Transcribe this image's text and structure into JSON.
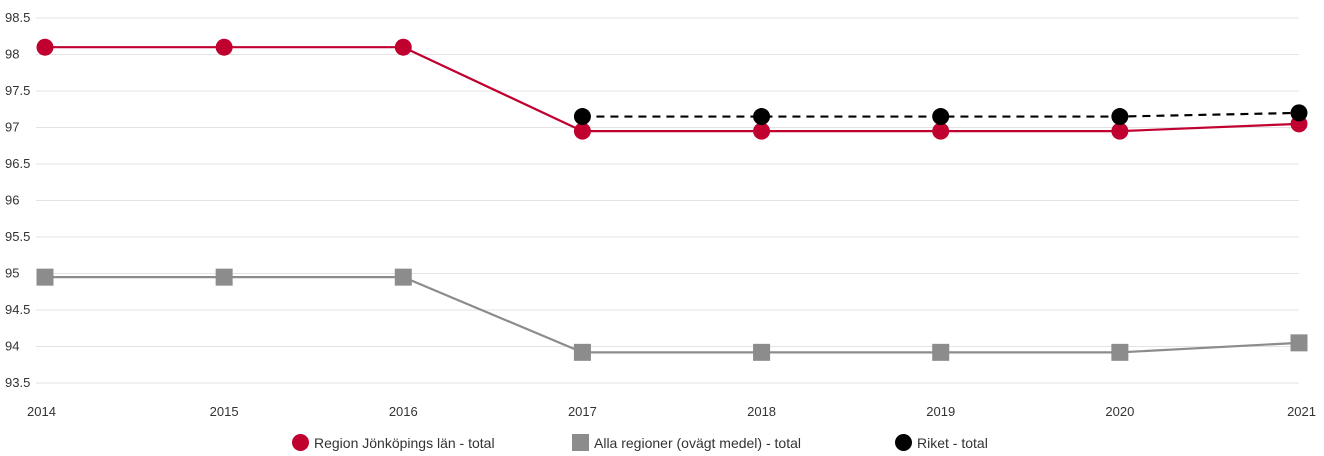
{
  "chart_data": {
    "type": "line",
    "categories": [
      "2014",
      "2015",
      "2016",
      "2017",
      "2018",
      "2019",
      "2020",
      "2021"
    ],
    "series": [
      {
        "name": "Region Jönköpings län - total",
        "values": [
          98.1,
          98.1,
          98.1,
          96.95,
          96.95,
          96.95,
          96.95,
          97.05
        ],
        "color": "#c0002f",
        "marker": "circle",
        "line_style": "solid"
      },
      {
        "name": "Alla regioner (ovägt medel) - total",
        "values": [
          94.95,
          94.95,
          94.95,
          93.92,
          93.92,
          93.92,
          93.92,
          94.05
        ],
        "color": "#8c8c8c",
        "marker": "square",
        "line_style": "solid"
      },
      {
        "name": "Riket - total",
        "values": [
          null,
          null,
          null,
          97.15,
          97.15,
          97.15,
          97.15,
          97.2
        ],
        "color": "#000000",
        "marker": "circle",
        "line_style": "dashed"
      }
    ],
    "y_ticks": [
      "93.5",
      "94",
      "94.5",
      "95",
      "95.5",
      "96",
      "96.5",
      "97",
      "97.5",
      "98",
      "98.5"
    ],
    "ylim": [
      93.5,
      98.5
    ],
    "grid": true,
    "legend_position": "bottom-center"
  }
}
